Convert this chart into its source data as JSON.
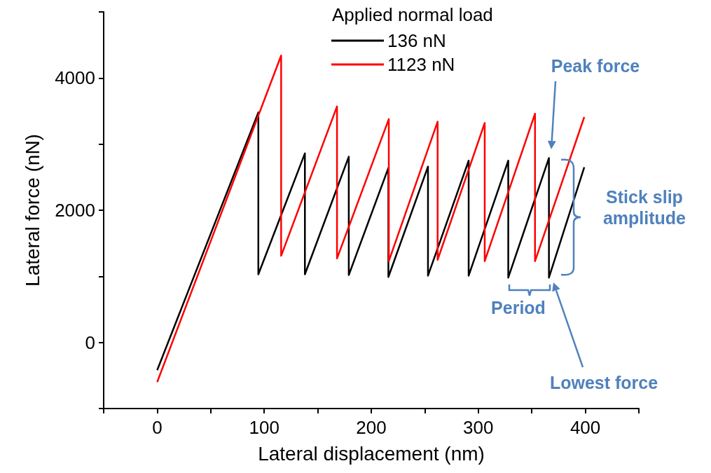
{
  "chart_data": {
    "type": "line",
    "xlabel": "Lateral displacement (nm)",
    "ylabel": "Lateral force (nN)",
    "legend_title": "Applied normal load",
    "legend": "top right",
    "grid": false,
    "marker": "none",
    "line_style": "solid",
    "xlim": [
      -50,
      450
    ],
    "xticks": [
      {
        "value": -50,
        "label": null
      },
      0,
      {
        "value": 50,
        "label": null
      },
      100,
      {
        "value": 150,
        "label": null
      },
      200,
      {
        "value": 250,
        "label": null
      },
      300,
      {
        "value": 350,
        "label": null
      },
      400,
      {
        "value": 450,
        "label": null
      }
    ],
    "ylim": [
      -1000,
      5000
    ],
    "yticks": [
      {
        "value": -1000,
        "label": null
      },
      0,
      {
        "value": 1000,
        "label": null
      },
      2000,
      {
        "value": 3000,
        "label": null
      },
      4000,
      {
        "value": 5000,
        "label": null
      }
    ],
    "series": [
      {
        "name": "136 nN",
        "color": "#000000",
        "x": [
          0,
          94.5,
          94.5,
          138,
          138,
          179,
          179,
          216,
          216,
          253,
          253,
          291,
          291,
          328,
          328,
          366,
          366,
          399
        ],
        "values": [
          -420,
          3480,
          1030,
          2860,
          1030,
          2810,
          1020,
          2640,
          990,
          2660,
          1010,
          2750,
          1010,
          2750,
          980,
          2790,
          980,
          2650
        ]
      },
      {
        "name": "1123 nN",
        "color": "#ff0000",
        "x": [
          0,
          115.8,
          115.8,
          168,
          168,
          216.4,
          216.4,
          262,
          262,
          306,
          306,
          353,
          353,
          399
        ],
        "values": [
          -600,
          4340,
          1310,
          3570,
          1270,
          3380,
          1230,
          3340,
          1250,
          3320,
          1230,
          3460,
          1230,
          3410
        ]
      }
    ],
    "annotations": [
      "Peak force",
      "Stick slip amplitude",
      "Period",
      "Lowest force"
    ]
  }
}
